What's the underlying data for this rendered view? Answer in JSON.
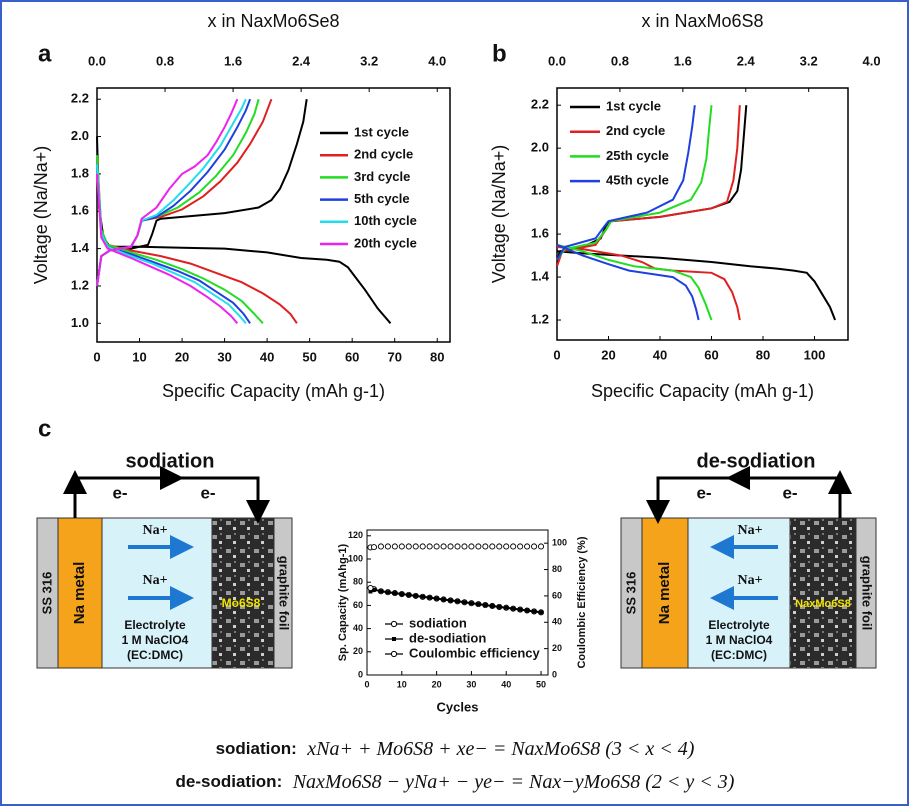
{
  "panel_labels": [
    "a",
    "b",
    "c"
  ],
  "chart_data": [
    {
      "type": "line",
      "title": "x in NaxMo6Se8",
      "x_label": "Specific Capacity (mAh g-1)",
      "y_label": "Voltage (Na/Na+)",
      "xlim": [
        0,
        83
      ],
      "xticks": [
        0,
        10,
        20,
        30,
        40,
        50,
        60,
        70,
        80
      ],
      "x2lim": [
        0,
        4.15
      ],
      "x2ticks": [
        {
          "value": 0,
          "label": "0.0"
        },
        0.8,
        1.6,
        2.4,
        3.2,
        {
          "value": 4,
          "label": "4.0"
        }
      ],
      "ylim": [
        0.9,
        2.26
      ],
      "yticks": [
        {
          "value": 1,
          "label": "1.0"
        },
        1.2,
        1.4,
        1.6,
        1.8,
        {
          "value": 2,
          "label": "2.0"
        },
        2.2
      ],
      "series": [
        {
          "name": "1st cycle",
          "color": "#000000",
          "x": [
            0,
            0.5,
            1.5,
            3,
            10,
            20,
            30,
            40,
            48,
            54,
            57,
            59,
            61,
            63,
            66,
            69,
            null,
            0,
            1,
            3,
            8,
            12,
            13,
            14,
            15,
            20,
            30,
            38,
            41,
            43,
            45,
            47,
            48.5,
            49.3
          ],
          "values": [
            2.0,
            1.62,
            1.46,
            1.41,
            1.41,
            1.405,
            1.4,
            1.38,
            1.35,
            1.34,
            1.33,
            1.3,
            1.24,
            1.18,
            1.08,
            1.0,
            null,
            1.2,
            1.36,
            1.39,
            1.4,
            1.42,
            1.48,
            1.55,
            1.56,
            1.57,
            1.59,
            1.62,
            1.66,
            1.72,
            1.82,
            1.96,
            2.08,
            2.2
          ]
        },
        {
          "name": "2nd cycle",
          "color": "#e02020",
          "x": [
            0,
            1,
            2.5,
            8,
            15,
            22,
            28,
            34,
            39,
            43,
            45.5,
            47,
            null,
            0,
            1,
            3,
            8,
            9.5,
            10.5,
            15,
            20,
            25,
            29,
            33,
            36,
            39,
            41
          ],
          "values": [
            1.9,
            1.5,
            1.42,
            1.39,
            1.36,
            1.32,
            1.27,
            1.22,
            1.16,
            1.1,
            1.05,
            1.0,
            null,
            1.2,
            1.36,
            1.39,
            1.41,
            1.47,
            1.55,
            1.57,
            1.61,
            1.68,
            1.76,
            1.86,
            1.96,
            2.08,
            2.2
          ]
        },
        {
          "name": "3rd cycle",
          "color": "#22dd22",
          "x": [
            0,
            1,
            2.5,
            8,
            14,
            20,
            25,
            30,
            34,
            37,
            39,
            null,
            0,
            1,
            3,
            8,
            9.5,
            10.5,
            14,
            19,
            24,
            28,
            32,
            35,
            37,
            38
          ],
          "values": [
            1.9,
            1.5,
            1.42,
            1.38,
            1.34,
            1.29,
            1.24,
            1.18,
            1.12,
            1.05,
            1.0,
            null,
            1.2,
            1.36,
            1.39,
            1.41,
            1.47,
            1.55,
            1.57,
            1.62,
            1.7,
            1.79,
            1.9,
            2.02,
            2.12,
            2.2
          ]
        },
        {
          "name": "5th cycle",
          "color": "#1f3fe0",
          "x": [
            0,
            1,
            2.5,
            8,
            13,
            19,
            24,
            28,
            32,
            34.5,
            36,
            null,
            0,
            1,
            3,
            8,
            9.5,
            10.5,
            14,
            18,
            22,
            26,
            30,
            33,
            35,
            36
          ],
          "values": [
            1.85,
            1.48,
            1.41,
            1.37,
            1.33,
            1.28,
            1.23,
            1.17,
            1.11,
            1.05,
            1.0,
            null,
            1.2,
            1.36,
            1.39,
            1.41,
            1.47,
            1.55,
            1.57,
            1.63,
            1.71,
            1.81,
            1.93,
            2.05,
            2.14,
            2.2
          ]
        },
        {
          "name": "10th cycle",
          "color": "#22ddee",
          "x": [
            0,
            1,
            2.5,
            8,
            13,
            18,
            23,
            27,
            31,
            33.5,
            35,
            null,
            0,
            1,
            3,
            8,
            9.5,
            10.5,
            14,
            18,
            21,
            25,
            29,
            32,
            34,
            35
          ],
          "values": [
            1.85,
            1.48,
            1.41,
            1.36,
            1.32,
            1.27,
            1.22,
            1.16,
            1.1,
            1.04,
            1.0,
            null,
            1.2,
            1.36,
            1.39,
            1.41,
            1.47,
            1.55,
            1.58,
            1.66,
            1.73,
            1.83,
            1.95,
            2.07,
            2.15,
            2.2
          ]
        },
        {
          "name": "20th cycle",
          "color": "#ee22ee",
          "x": [
            0,
            1,
            2.5,
            8,
            12,
            17,
            22,
            26,
            29,
            31.5,
            33,
            null,
            0,
            1,
            3,
            8,
            9.5,
            10.5,
            14,
            17,
            20,
            23,
            26,
            28,
            30,
            31.5,
            33
          ],
          "values": [
            1.8,
            1.46,
            1.4,
            1.35,
            1.31,
            1.26,
            1.2,
            1.14,
            1.09,
            1.04,
            1.0,
            null,
            1.2,
            1.36,
            1.39,
            1.41,
            1.47,
            1.56,
            1.62,
            1.72,
            1.8,
            1.84,
            1.9,
            1.97,
            2.05,
            2.12,
            2.2
          ]
        }
      ]
    },
    {
      "type": "line",
      "title": "x in NaxMo6S8",
      "x_label": "Specific Capacity (mAh g-1)",
      "y_label": "Voltage (Na/Na+)",
      "xlim": [
        0,
        113
      ],
      "xticks": [
        0,
        20,
        40,
        60,
        80,
        100
      ],
      "x2lim": [
        0,
        3.7
      ],
      "x2ticks": [
        {
          "value": 0,
          "label": "0.0"
        },
        0.8,
        1.6,
        2.4,
        3.2,
        {
          "value": 4,
          "label": "4.0"
        }
      ],
      "ylim": [
        1.107,
        2.28
      ],
      "yticks": [
        1.2,
        1.4,
        1.6,
        1.8,
        {
          "value": 2,
          "label": "2.0"
        },
        2.2
      ],
      "series": [
        {
          "name": "1st cycle",
          "color": "#000000",
          "x": [
            0,
            10,
            40,
            60,
            75,
            85,
            92,
            97,
            100,
            103,
            106,
            108,
            null,
            0,
            1,
            10,
            17,
            19,
            21,
            40,
            60,
            67,
            70,
            71.5,
            72.5,
            73.5
          ],
          "values": [
            1.52,
            1.51,
            1.49,
            1.47,
            1.45,
            1.44,
            1.43,
            1.42,
            1.38,
            1.32,
            1.26,
            1.2,
            null,
            1.45,
            1.52,
            1.54,
            1.58,
            1.64,
            1.66,
            1.68,
            1.72,
            1.75,
            1.8,
            1.9,
            2.05,
            2.2
          ]
        },
        {
          "name": "2nd cycle",
          "color": "#e02020",
          "x": [
            0,
            10,
            25,
            33,
            38,
            45,
            60,
            65,
            68,
            70,
            71,
            null,
            0,
            2,
            15,
            19,
            21,
            40,
            60,
            66,
            68.5,
            70,
            71
          ],
          "values": [
            1.54,
            1.53,
            1.5,
            1.47,
            1.44,
            1.43,
            1.42,
            1.39,
            1.33,
            1.26,
            1.2,
            null,
            1.45,
            1.52,
            1.55,
            1.62,
            1.66,
            1.68,
            1.72,
            1.75,
            1.85,
            2.0,
            2.2
          ]
        },
        {
          "name": "25th cycle",
          "color": "#22dd22",
          "x": [
            0,
            10,
            20,
            30,
            45,
            52,
            55,
            57.5,
            60,
            null,
            0,
            3,
            15,
            19,
            21,
            40,
            52,
            56,
            58,
            59,
            60
          ],
          "values": [
            1.55,
            1.52,
            1.48,
            1.45,
            1.43,
            1.4,
            1.35,
            1.28,
            1.2,
            null,
            1.48,
            1.53,
            1.56,
            1.62,
            1.66,
            1.7,
            1.76,
            1.84,
            1.95,
            2.08,
            2.2
          ]
        },
        {
          "name": "45th cycle",
          "color": "#1f3fe0",
          "x": [
            0,
            10,
            20,
            28,
            45,
            50,
            52.5,
            54,
            55,
            null,
            0,
            3,
            15,
            18,
            20,
            35,
            45,
            49,
            51,
            52.5,
            53.5
          ],
          "values": [
            1.55,
            1.5,
            1.46,
            1.43,
            1.4,
            1.36,
            1.31,
            1.25,
            1.2,
            null,
            1.48,
            1.54,
            1.58,
            1.63,
            1.66,
            1.7,
            1.76,
            1.85,
            1.98,
            2.1,
            2.2
          ]
        }
      ]
    },
    {
      "type": "line",
      "x_label": "Cycles",
      "y_label": "Sp. Capacity (mAhg-1)",
      "y2_label": "Coulombic Efficiency (%)",
      "xlim": [
        0,
        52
      ],
      "xticks": [
        0,
        10,
        20,
        30,
        40,
        50
      ],
      "ylim": [
        0,
        125
      ],
      "yticks": [
        0,
        20,
        40,
        60,
        80,
        100,
        120
      ],
      "y2lim": [
        0,
        110
      ],
      "y2ticks": [
        0,
        20,
        40,
        60,
        80,
        100
      ],
      "series": [
        {
          "name": "sodiation",
          "color": "#000000",
          "marker": "open-circle",
          "x": [
            1,
            2,
            4,
            6,
            8,
            10,
            12,
            14,
            16,
            18,
            20,
            22,
            24,
            26,
            28,
            30,
            32,
            34,
            36,
            38,
            40,
            42,
            44,
            46,
            48,
            50
          ],
          "values": [
            110,
            74,
            72.2,
            71.4,
            70.6,
            69.8,
            69.0,
            68.2,
            67.4,
            66.7,
            65.9,
            65.1,
            64.3,
            63.5,
            62.7,
            61.9,
            61.1,
            60.3,
            59.5,
            58.7,
            58.0,
            57.2,
            56.4,
            55.6,
            54.8,
            54.0
          ]
        },
        {
          "name": "de-sodiation",
          "color": "#000000",
          "marker": "square",
          "x": [
            1,
            2,
            4,
            6,
            8,
            10,
            12,
            14,
            16,
            18,
            20,
            22,
            24,
            26,
            28,
            30,
            32,
            34,
            36,
            38,
            40,
            42,
            44,
            46,
            48,
            50
          ],
          "values": [
            72,
            73.5,
            72.2,
            71.4,
            70.6,
            69.8,
            69.0,
            68.2,
            67.4,
            66.7,
            65.9,
            65.1,
            64.3,
            63.5,
            62.7,
            61.9,
            61.1,
            60.3,
            59.5,
            58.7,
            58.0,
            57.2,
            56.4,
            55.6,
            54.8,
            54.0
          ]
        },
        {
          "name": "Coulombic efficiency",
          "color": "#000000",
          "marker": "open-circle",
          "axis": "y2",
          "x": [
            1,
            2,
            4,
            6,
            8,
            10,
            12,
            14,
            16,
            18,
            20,
            22,
            24,
            26,
            28,
            30,
            32,
            34,
            36,
            38,
            40,
            42,
            44,
            46,
            48,
            50
          ],
          "values": [
            66,
            97,
            97.5,
            97.5,
            97.5,
            97.5,
            97.5,
            97.5,
            97.5,
            97.5,
            97.5,
            97.5,
            97.5,
            97.5,
            97.5,
            97.5,
            97.5,
            97.5,
            97.5,
            97.5,
            97.5,
            97.5,
            97.5,
            97.5,
            97.5,
            97.5
          ]
        }
      ]
    }
  ],
  "diagrams": [
    {
      "title": "sodiation",
      "electrons": [
        "e-",
        "e-"
      ],
      "collector": "SS 316",
      "anode": "Na metal",
      "ions": [
        "Na+",
        "Na+"
      ],
      "cathode": "Mo6S8",
      "electrolyte": [
        "Electrolyte",
        "1 M NaClO4",
        "(EC:DMC)"
      ],
      "foil": "graphite foil"
    },
    {
      "title": "de-sodiation",
      "electrons": [
        "e-",
        "e-"
      ],
      "collector": "SS 316",
      "anode": "Na metal",
      "ions": [
        "Na+",
        "Na+"
      ],
      "cathode": "NaxMo6S8",
      "electrolyte": [
        "Electrolyte",
        "1 M NaClO4",
        "(EC:DMC)"
      ],
      "foil": "graphite foil"
    }
  ],
  "equations": [
    {
      "label": "sodiation:",
      "text": "xNa+ + Mo6S8 + xe− = NaxMo6S8 (3 < x < 4)"
    },
    {
      "label": "de-sodiation:",
      "text": "NaxMo6S8 − yNa+ − ye− = Nax−yMo6S8 (2 < y < 3)"
    }
  ]
}
